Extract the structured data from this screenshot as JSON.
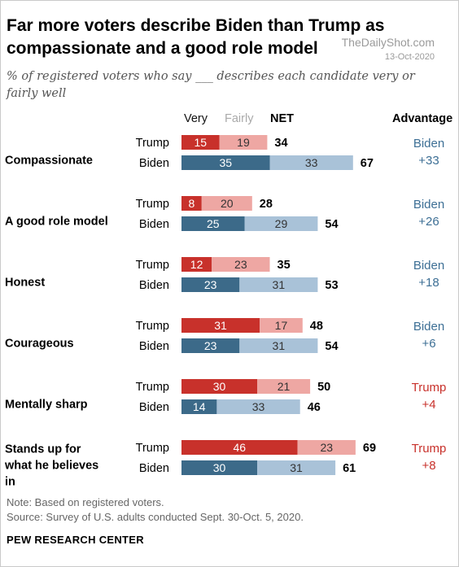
{
  "title": "Far more voters describe Biden than Trump as compassionate and a good role model",
  "title_lines": [
    "Far more voters describe Biden than Trump as",
    "compassionate and a good role model"
  ],
  "subtitle_lines": [
    "% of registered voters who say ___ describes each candidate very or",
    "fairly well"
  ],
  "watermark": {
    "site": "TheDailyShot.com",
    "date": "13-Oct-2020"
  },
  "headers": {
    "very": "Very",
    "fairly": "Fairly",
    "net": "NET",
    "advantage": "Advantage"
  },
  "colors": {
    "trump_very": "#c8312b",
    "trump_fairly": "#eea7a3",
    "biden_very": "#3c6a89",
    "biden_fairly": "#a9c2d8",
    "trump_adv": "#c8312b",
    "biden_adv": "#3d6f95"
  },
  "chart_data": {
    "type": "bar",
    "stacked": true,
    "orientation": "horizontal",
    "segments": [
      "Very",
      "Fairly"
    ],
    "traits": [
      {
        "label": "Compassionate",
        "trump": {
          "very": 15,
          "fairly": 19,
          "net": 34
        },
        "biden": {
          "very": 35,
          "fairly": 33,
          "net": 67
        },
        "advantage": {
          "who": "Biden",
          "value": "+33"
        }
      },
      {
        "label": "A good role model",
        "trump": {
          "very": 8,
          "fairly": 20,
          "net": 28
        },
        "biden": {
          "very": 25,
          "fairly": 29,
          "net": 54
        },
        "advantage": {
          "who": "Biden",
          "value": "+26"
        }
      },
      {
        "label": "Honest",
        "trump": {
          "very": 12,
          "fairly": 23,
          "net": 35
        },
        "biden": {
          "very": 23,
          "fairly": 31,
          "net": 53
        },
        "advantage": {
          "who": "Biden",
          "value": "+18"
        }
      },
      {
        "label": "Courageous",
        "trump": {
          "very": 31,
          "fairly": 17,
          "net": 48
        },
        "biden": {
          "very": 23,
          "fairly": 31,
          "net": 54
        },
        "advantage": {
          "who": "Biden",
          "value": "+6"
        }
      },
      {
        "label": "Mentally sharp",
        "trump": {
          "very": 30,
          "fairly": 21,
          "net": 50
        },
        "biden": {
          "very": 14,
          "fairly": 33,
          "net": 46
        },
        "advantage": {
          "who": "Trump",
          "value": "+4"
        }
      },
      {
        "label": "Stands up for what he believes in",
        "trump": {
          "very": 46,
          "fairly": 23,
          "net": 69
        },
        "biden": {
          "very": 30,
          "fairly": 31,
          "net": 61
        },
        "advantage": {
          "who": "Trump",
          "value": "+8"
        }
      }
    ],
    "candidates": [
      "Trump",
      "Biden"
    ]
  },
  "footer": {
    "note": "Note: Based on registered voters.",
    "source": "Source: Survey of U.S. adults conducted Sept. 30-Oct. 5, 2020.",
    "org": "PEW RESEARCH CENTER"
  }
}
